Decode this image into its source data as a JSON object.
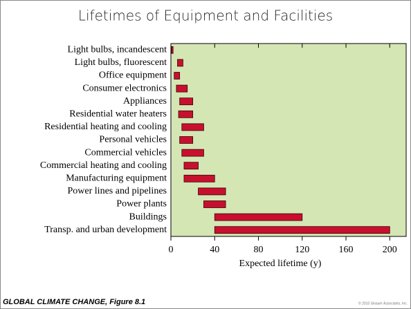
{
  "chart_data": {
    "type": "floating-bar",
    "title": "Lifetimes of Equipment and Facilities",
    "xlabel": "Expected lifetime (y)",
    "categories": [
      "Light bulbs, incandescent",
      "Light bulbs, fluorescent",
      "Office equipment",
      "Consumer electronics",
      "Appliances",
      "Residential water heaters",
      "Residential heating and cooling",
      "Personal vehicles",
      "Commercial vehicles",
      "Commercial heating and cooling",
      "Manufacturing equipment",
      "Power lines and pipelines",
      "Power plants",
      "Buildings",
      "Transp. and urban development"
    ],
    "low": [
      0.5,
      6,
      3,
      5,
      8,
      7,
      10,
      8,
      10,
      12,
      12,
      25,
      30,
      40,
      40
    ],
    "high": [
      2,
      11,
      8,
      15,
      20,
      20,
      30,
      20,
      30,
      25,
      40,
      50,
      50,
      120,
      200
    ],
    "color": "#c8102e",
    "plot_background": "#d5e6b5",
    "xlim": [
      0,
      215
    ],
    "xticks": [
      0,
      40,
      80,
      120,
      160,
      200
    ],
    "footer": "GLOBAL CLIMATE CHANGE, Figure 8.1",
    "credit": "© 2010 Sinauer Associates, Inc."
  }
}
